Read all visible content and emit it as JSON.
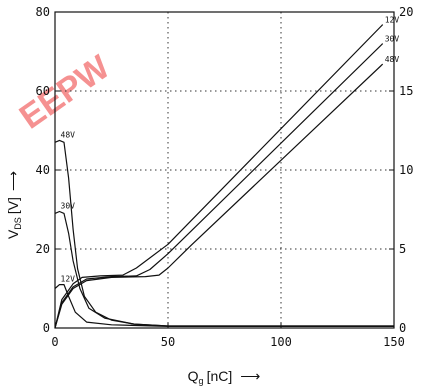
{
  "watermark": {
    "text": "EEPW"
  },
  "chart_data": {
    "type": "line",
    "title": "",
    "xlabel": {
      "main": "Q",
      "sub": "g",
      "unit": "[nC]",
      "arrow": "⟶"
    },
    "ylabel": {
      "main": "V",
      "sub": "DS",
      "unit": "[V]",
      "arrow": "⟶"
    },
    "xlim": [
      0,
      150
    ],
    "ylim_left": [
      0,
      80
    ],
    "ylim_right": [
      0,
      20
    ],
    "x_ticks": [
      0,
      50,
      100,
      150
    ],
    "y_ticks_left": [
      0,
      20,
      40,
      60,
      80
    ],
    "y_ticks_right": [
      0,
      5,
      10,
      15,
      20
    ],
    "grid": "dotted",
    "series": [
      {
        "name": "48V",
        "vds_points": [
          [
            0,
            47
          ],
          [
            2,
            47.5
          ],
          [
            4,
            47
          ],
          [
            6,
            38
          ],
          [
            8,
            25
          ],
          [
            10,
            15
          ],
          [
            13,
            8
          ],
          [
            18,
            4
          ],
          [
            25,
            2
          ],
          [
            35,
            1
          ],
          [
            50,
            0.5
          ],
          [
            150,
            0.5
          ]
        ],
        "vgs_points": [
          [
            0,
            0
          ],
          [
            3,
            1.5
          ],
          [
            8,
            2.5
          ],
          [
            14,
            3.0
          ],
          [
            25,
            3.2
          ],
          [
            40,
            3.25
          ],
          [
            46,
            3.35
          ],
          [
            50,
            3.8
          ],
          [
            60,
            5.2
          ],
          [
            145,
            16.7
          ]
        ]
      },
      {
        "name": "30V",
        "vds_points": [
          [
            0,
            29
          ],
          [
            2,
            29.5
          ],
          [
            4,
            29
          ],
          [
            6,
            24
          ],
          [
            8,
            17
          ],
          [
            11,
            10
          ],
          [
            15,
            5
          ],
          [
            22,
            2.5
          ],
          [
            35,
            1
          ],
          [
            50,
            0.5
          ],
          [
            150,
            0.5
          ]
        ],
        "vgs_points": [
          [
            0,
            0
          ],
          [
            3,
            1.6
          ],
          [
            8,
            2.6
          ],
          [
            14,
            3.1
          ],
          [
            25,
            3.25
          ],
          [
            36,
            3.3
          ],
          [
            42,
            3.7
          ],
          [
            50,
            4.7
          ],
          [
            145,
            18.0
          ]
        ]
      },
      {
        "name": "12V",
        "vds_points": [
          [
            0,
            10
          ],
          [
            2,
            11
          ],
          [
            4,
            11
          ],
          [
            6,
            8
          ],
          [
            9,
            4
          ],
          [
            14,
            1.5
          ],
          [
            25,
            0.8
          ],
          [
            50,
            0.4
          ],
          [
            150,
            0.4
          ]
        ],
        "vgs_points": [
          [
            0,
            0
          ],
          [
            3,
            1.8
          ],
          [
            8,
            2.8
          ],
          [
            12,
            3.2
          ],
          [
            20,
            3.3
          ],
          [
            30,
            3.35
          ],
          [
            36,
            3.8
          ],
          [
            50,
            5.3
          ],
          [
            145,
            19.2
          ]
        ]
      }
    ]
  }
}
